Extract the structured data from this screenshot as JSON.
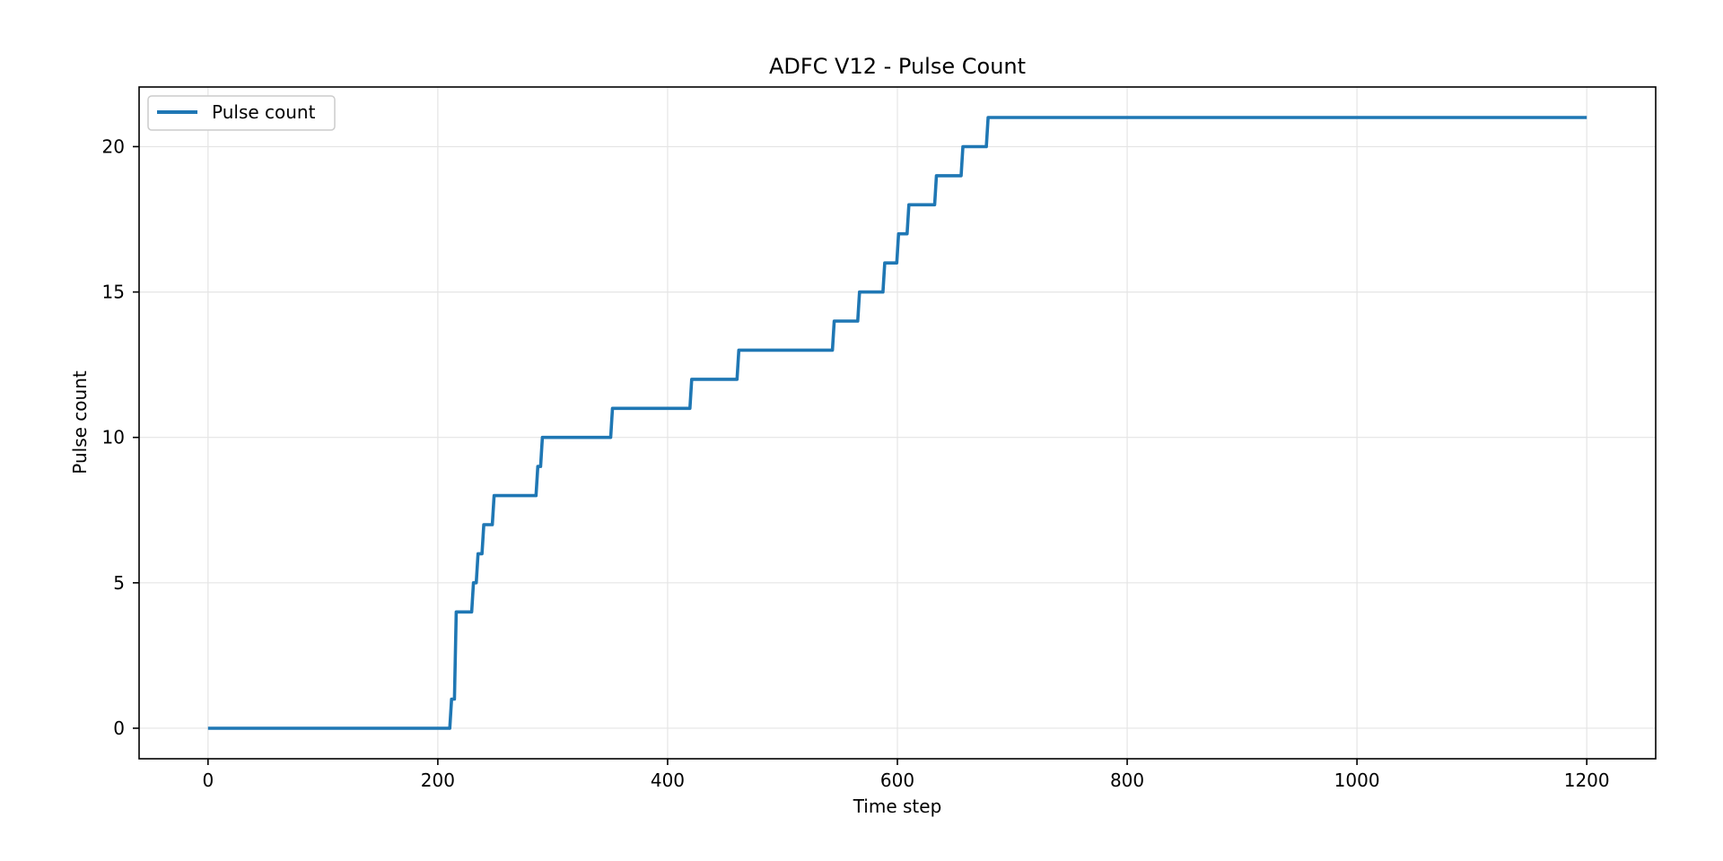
{
  "chart_data": {
    "type": "line",
    "title": "ADFC V12 - Pulse Count",
    "xlabel": "Time step",
    "ylabel": "Pulse count",
    "xlim": [
      -60,
      1260
    ],
    "ylim": [
      -1.05,
      22.05
    ],
    "xticks": [
      0,
      200,
      400,
      600,
      800,
      1000,
      1200
    ],
    "yticks": [
      0,
      5,
      10,
      15,
      20
    ],
    "grid": true,
    "legend_position": "top-left",
    "series": [
      {
        "name": "Pulse count",
        "color": "#1f77b4",
        "step": true,
        "points": [
          [
            0,
            0
          ],
          [
            212,
            1
          ],
          [
            216,
            4
          ],
          [
            231,
            5
          ],
          [
            235,
            6
          ],
          [
            240,
            7
          ],
          [
            249,
            8
          ],
          [
            287,
            9
          ],
          [
            291,
            10
          ],
          [
            352,
            11
          ],
          [
            421,
            12
          ],
          [
            462,
            13
          ],
          [
            545,
            14
          ],
          [
            567,
            15
          ],
          [
            589,
            16
          ],
          [
            601,
            17
          ],
          [
            610,
            18
          ],
          [
            634,
            19
          ],
          [
            657,
            20
          ],
          [
            679,
            21
          ],
          [
            1200,
            21
          ]
        ]
      }
    ]
  }
}
